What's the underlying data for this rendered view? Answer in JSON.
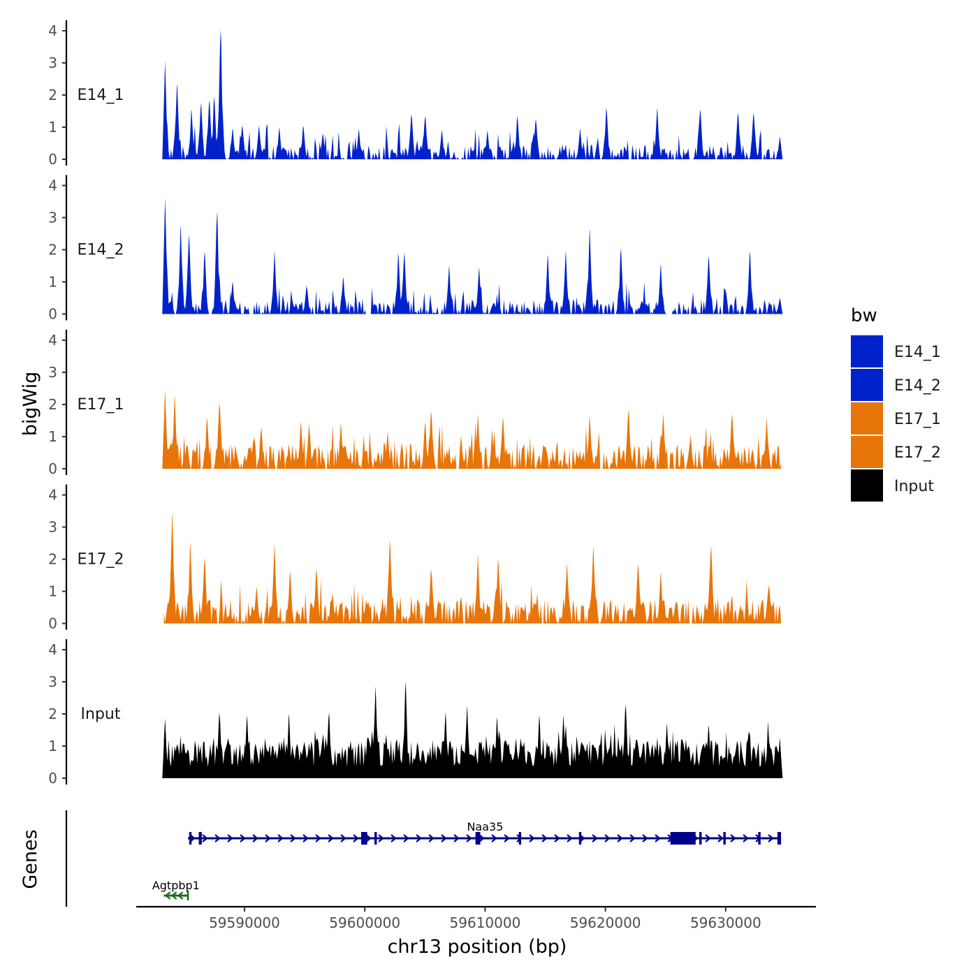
{
  "chart_data": {
    "type": "area",
    "y_axis_title": "bigWig",
    "x_axis_title": "chr13 position (bp)",
    "genes_panel_title": "Genes",
    "xlim": [
      59581000,
      59637500
    ],
    "data_xrange": [
      59583300,
      59634600
    ],
    "ylim": [
      0,
      4.3
    ],
    "y_ticks": [
      0,
      1,
      2,
      3,
      4
    ],
    "x_ticks": [
      {
        "value": 59590000,
        "label": "59590000"
      },
      {
        "value": 59600000,
        "label": "59600000"
      },
      {
        "value": 59610000,
        "label": "59610000"
      },
      {
        "value": 59620000,
        "label": "59620000"
      },
      {
        "value": 59630000,
        "label": "59630000"
      }
    ],
    "tracks": [
      {
        "name": "E14_1",
        "color": "#0022CC",
        "peaks": [
          {
            "pos": 59583400,
            "value": 3.05
          },
          {
            "pos": 59584400,
            "value": 2.35
          },
          {
            "pos": 59585600,
            "value": 1.55
          },
          {
            "pos": 59586400,
            "value": 1.75
          },
          {
            "pos": 59587100,
            "value": 1.85
          },
          {
            "pos": 59587500,
            "value": 1.95
          },
          {
            "pos": 59588000,
            "value": 4.05
          },
          {
            "pos": 59589000,
            "value": 0.95
          },
          {
            "pos": 59589800,
            "value": 1.05
          },
          {
            "pos": 59591200,
            "value": 1.05
          },
          {
            "pos": 59592900,
            "value": 1.0
          },
          {
            "pos": 59594900,
            "value": 1.05
          },
          {
            "pos": 59596500,
            "value": 0.8
          },
          {
            "pos": 59599500,
            "value": 0.95
          },
          {
            "pos": 59603900,
            "value": 1.4
          },
          {
            "pos": 59605000,
            "value": 1.35
          },
          {
            "pos": 59606400,
            "value": 0.9
          },
          {
            "pos": 59610200,
            "value": 0.9
          },
          {
            "pos": 59612700,
            "value": 1.35
          },
          {
            "pos": 59614200,
            "value": 1.25
          },
          {
            "pos": 59617900,
            "value": 0.95
          },
          {
            "pos": 59620100,
            "value": 1.6
          },
          {
            "pos": 59624300,
            "value": 1.6
          },
          {
            "pos": 59627900,
            "value": 1.55
          },
          {
            "pos": 59631000,
            "value": 1.45
          },
          {
            "pos": 59632300,
            "value": 1.45
          },
          {
            "pos": 59634500,
            "value": 0.7
          }
        ]
      },
      {
        "name": "E14_2",
        "color": "#0022CC",
        "peaks": [
          {
            "pos": 59583400,
            "value": 3.6
          },
          {
            "pos": 59584700,
            "value": 2.75
          },
          {
            "pos": 59585400,
            "value": 2.45
          },
          {
            "pos": 59586700,
            "value": 1.95
          },
          {
            "pos": 59587700,
            "value": 3.2
          },
          {
            "pos": 59589000,
            "value": 1.0
          },
          {
            "pos": 59592500,
            "value": 1.95
          },
          {
            "pos": 59595200,
            "value": 0.85
          },
          {
            "pos": 59598200,
            "value": 1.15
          },
          {
            "pos": 59602800,
            "value": 1.9
          },
          {
            "pos": 59603300,
            "value": 1.9
          },
          {
            "pos": 59607000,
            "value": 1.5
          },
          {
            "pos": 59609500,
            "value": 1.45
          },
          {
            "pos": 59615200,
            "value": 1.85
          },
          {
            "pos": 59616700,
            "value": 1.95
          },
          {
            "pos": 59618700,
            "value": 2.65
          },
          {
            "pos": 59621300,
            "value": 2.05
          },
          {
            "pos": 59624600,
            "value": 1.55
          },
          {
            "pos": 59628600,
            "value": 1.8
          },
          {
            "pos": 59632000,
            "value": 1.95
          },
          {
            "pos": 59634500,
            "value": 0.5
          }
        ]
      },
      {
        "name": "E17_1",
        "color": "#E8750A",
        "peaks": [
          {
            "pos": 59583400,
            "value": 2.45
          },
          {
            "pos": 59584200,
            "value": 2.3
          },
          {
            "pos": 59586900,
            "value": 1.6
          },
          {
            "pos": 59587900,
            "value": 2.05
          },
          {
            "pos": 59591400,
            "value": 1.3
          },
          {
            "pos": 59594700,
            "value": 1.45
          },
          {
            "pos": 59598000,
            "value": 1.4
          },
          {
            "pos": 59601900,
            "value": 1.15
          },
          {
            "pos": 59605000,
            "value": 1.45
          },
          {
            "pos": 59605500,
            "value": 1.8
          },
          {
            "pos": 59609400,
            "value": 1.7
          },
          {
            "pos": 59611500,
            "value": 1.6
          },
          {
            "pos": 59618700,
            "value": 1.65
          },
          {
            "pos": 59621900,
            "value": 1.85
          },
          {
            "pos": 59624800,
            "value": 1.7
          },
          {
            "pos": 59630500,
            "value": 1.7
          },
          {
            "pos": 59633400,
            "value": 1.55
          }
        ]
      },
      {
        "name": "E17_2",
        "color": "#E8750A",
        "peaks": [
          {
            "pos": 59584000,
            "value": 3.45
          },
          {
            "pos": 59585500,
            "value": 2.55
          },
          {
            "pos": 59586700,
            "value": 2.05
          },
          {
            "pos": 59591000,
            "value": 1.15
          },
          {
            "pos": 59592500,
            "value": 2.45
          },
          {
            "pos": 59593800,
            "value": 1.65
          },
          {
            "pos": 59596000,
            "value": 1.7
          },
          {
            "pos": 59602100,
            "value": 2.6
          },
          {
            "pos": 59605500,
            "value": 1.7
          },
          {
            "pos": 59609400,
            "value": 2.15
          },
          {
            "pos": 59611100,
            "value": 2.0
          },
          {
            "pos": 59616800,
            "value": 1.85
          },
          {
            "pos": 59619000,
            "value": 2.4
          },
          {
            "pos": 59622700,
            "value": 1.85
          },
          {
            "pos": 59624600,
            "value": 1.6
          },
          {
            "pos": 59628800,
            "value": 2.4
          },
          {
            "pos": 59633600,
            "value": 1.2
          }
        ]
      },
      {
        "name": "Input",
        "color": "#000000",
        "peaks": [
          {
            "pos": 59583400,
            "value": 1.85
          },
          {
            "pos": 59587900,
            "value": 2.05
          },
          {
            "pos": 59590200,
            "value": 1.95
          },
          {
            "pos": 59593700,
            "value": 2.0
          },
          {
            "pos": 59597000,
            "value": 2.05
          },
          {
            "pos": 59600900,
            "value": 2.85
          },
          {
            "pos": 59603400,
            "value": 3.0
          },
          {
            "pos": 59606700,
            "value": 2.05
          },
          {
            "pos": 59608500,
            "value": 2.25
          },
          {
            "pos": 59611000,
            "value": 1.9
          },
          {
            "pos": 59614500,
            "value": 1.95
          },
          {
            "pos": 59616500,
            "value": 1.95
          },
          {
            "pos": 59621700,
            "value": 2.3
          },
          {
            "pos": 59625100,
            "value": 1.7
          },
          {
            "pos": 59628600,
            "value": 1.65
          },
          {
            "pos": 59631900,
            "value": 1.45
          },
          {
            "pos": 59634500,
            "value": 1.25
          }
        ]
      }
    ],
    "genes": [
      {
        "name": "Agtpbp1",
        "start": 59583300,
        "end": 59585300,
        "strand": "-",
        "color": "#1B6B1B",
        "exons": []
      },
      {
        "name": "Naa35",
        "start": 59585300,
        "end": 59634600,
        "strand": "+",
        "color": "#00008B",
        "exons": [
          {
            "start": 59585400,
            "end": 59585600
          },
          {
            "start": 59586200,
            "end": 59586450
          },
          {
            "start": 59599700,
            "end": 59600200
          },
          {
            "start": 59600800,
            "end": 59601000
          },
          {
            "start": 59609200,
            "end": 59609600
          },
          {
            "start": 59612800,
            "end": 59613000
          },
          {
            "start": 59617800,
            "end": 59618000
          },
          {
            "start": 59625400,
            "end": 59627500
          },
          {
            "start": 59627800,
            "end": 59628000
          },
          {
            "start": 59629800,
            "end": 59630000
          },
          {
            "start": 59632700,
            "end": 59632900
          },
          {
            "start": 59634300,
            "end": 59634600
          }
        ]
      }
    ]
  },
  "legend": {
    "title": "bw",
    "items": [
      {
        "label": "E14_1",
        "color": "#0022CC"
      },
      {
        "label": "E14_2",
        "color": "#0022CC"
      },
      {
        "label": "E17_1",
        "color": "#E8750A"
      },
      {
        "label": "E17_2",
        "color": "#E8750A"
      },
      {
        "label": "Input",
        "color": "#000000"
      }
    ]
  }
}
